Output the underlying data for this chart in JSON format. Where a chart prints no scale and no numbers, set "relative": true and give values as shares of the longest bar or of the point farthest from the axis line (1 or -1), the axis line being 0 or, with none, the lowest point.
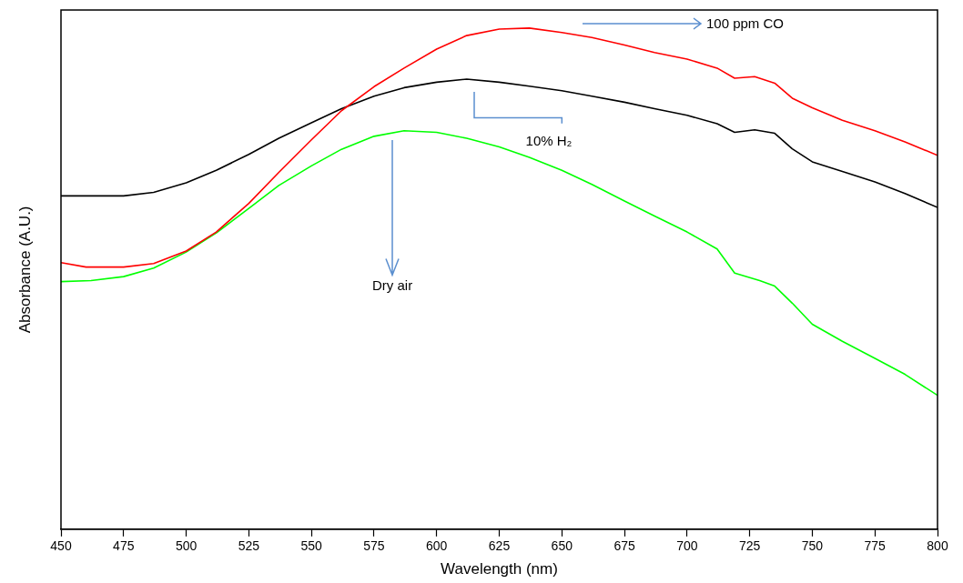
{
  "chart_data": {
    "type": "line",
    "relative": true,
    "xlabel": "Wavelength (nm)",
    "ylabel": "Absorbance (A.U.)",
    "xlim": [
      450,
      800
    ],
    "xticks": [
      450,
      475,
      500,
      525,
      550,
      575,
      600,
      625,
      650,
      675,
      700,
      725,
      750,
      775,
      800
    ],
    "marker": "none",
    "line_style": "solid",
    "series": [
      {
        "color": "#ff0000",
        "x": [
          450,
          460,
          475,
          487,
          500,
          512,
          525,
          537,
          550,
          562,
          575,
          587,
          600,
          612,
          625,
          637,
          650,
          662,
          675,
          687,
          700,
          712,
          719,
          727,
          735,
          742,
          750,
          762,
          775,
          787,
          800
        ],
        "values": [
          0.532,
          0.523,
          0.523,
          0.53,
          0.555,
          0.593,
          0.65,
          0.712,
          0.777,
          0.835,
          0.883,
          0.92,
          0.958,
          0.985,
          0.998,
          1,
          0.991,
          0.981,
          0.966,
          0.951,
          0.938,
          0.92,
          0.9,
          0.903,
          0.89,
          0.86,
          0.841,
          0.816,
          0.795,
          0.773,
          0.746
        ]
      },
      {
        "color": "#000000",
        "x": [
          450,
          475,
          487,
          500,
          512,
          525,
          537,
          550,
          562,
          575,
          587,
          600,
          612,
          625,
          637,
          650,
          662,
          675,
          687,
          700,
          712,
          719,
          727,
          735,
          742,
          750,
          762,
          775,
          787,
          800
        ],
        "values": [
          0.665,
          0.665,
          0.672,
          0.691,
          0.716,
          0.748,
          0.78,
          0.811,
          0.839,
          0.864,
          0.881,
          0.892,
          0.898,
          0.892,
          0.884,
          0.875,
          0.864,
          0.852,
          0.839,
          0.826,
          0.809,
          0.792,
          0.797,
          0.79,
          0.759,
          0.733,
          0.714,
          0.693,
          0.67,
          0.642
        ]
      },
      {
        "color": "#00ff00",
        "x": [
          450,
          462,
          475,
          487,
          500,
          512,
          525,
          537,
          550,
          562,
          575,
          587,
          600,
          612,
          625,
          637,
          650,
          662,
          675,
          687,
          700,
          712,
          719,
          729,
          735,
          742,
          750,
          762,
          775,
          787,
          800
        ],
        "values": [
          0.494,
          0.496,
          0.504,
          0.521,
          0.553,
          0.591,
          0.64,
          0.686,
          0.725,
          0.758,
          0.784,
          0.795,
          0.792,
          0.78,
          0.763,
          0.742,
          0.716,
          0.688,
          0.655,
          0.625,
          0.593,
          0.559,
          0.511,
          0.496,
          0.485,
          0.451,
          0.409,
          0.375,
          0.341,
          0.309,
          0.267
        ]
      }
    ],
    "annotations": [
      "100 ppm CO",
      "10% H₂",
      "Dry air"
    ]
  }
}
